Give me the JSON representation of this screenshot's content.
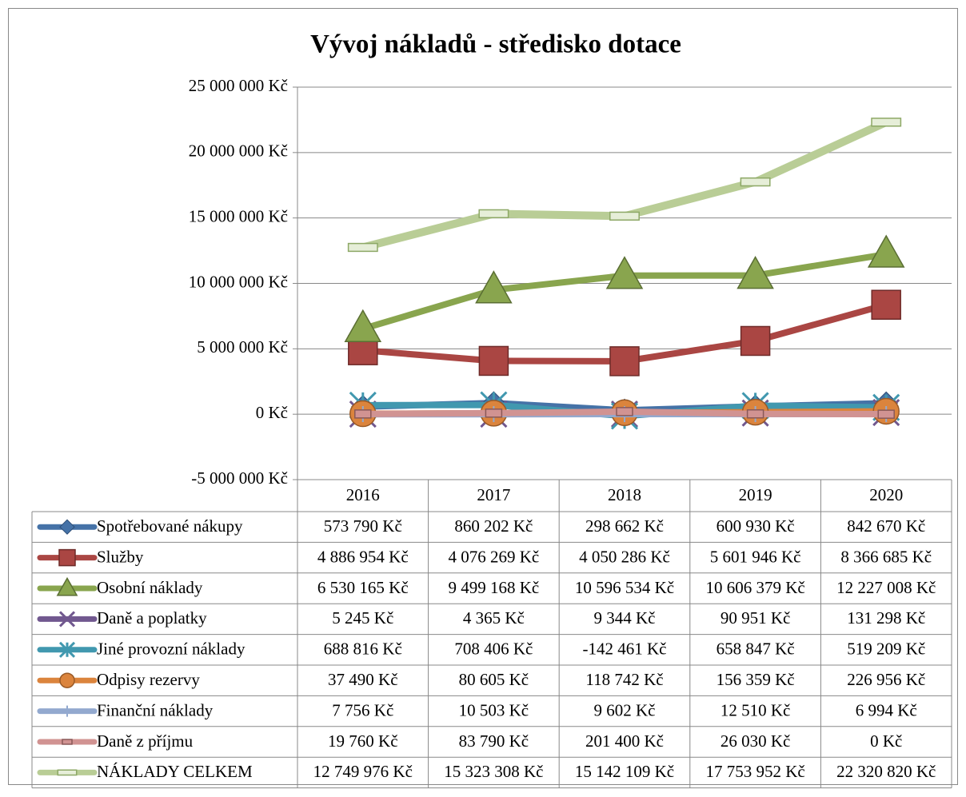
{
  "chart_data": {
    "type": "line",
    "title": "Vývoj nákladů - středisko dotace",
    "categories": [
      "2016",
      "2017",
      "2018",
      "2019",
      "2020"
    ],
    "ylim": [
      -5000000,
      25000000
    ],
    "yticks": [
      {
        "value": -5000000,
        "label": "-5 000 000 Kč"
      },
      {
        "value": 0,
        "label": "0 Kč"
      },
      {
        "value": 5000000,
        "label": "5 000 000 Kč"
      },
      {
        "value": 10000000,
        "label": "10 000 000 Kč"
      },
      {
        "value": 15000000,
        "label": "15 000 000 Kč"
      },
      {
        "value": 20000000,
        "label": "20 000 000 Kč"
      },
      {
        "value": 25000000,
        "label": "25 000 000 Kč"
      }
    ],
    "grid": true,
    "series": [
      {
        "name": "Spotřebované nákupy",
        "color": "#4572a7",
        "marker": "diamond",
        "values": [
          573790,
          860202,
          298662,
          600930,
          842670
        ],
        "value_labels": [
          "573 790 Kč",
          "860 202 Kč",
          "298 662 Kč",
          "600 930 Kč",
          "842 670 Kč"
        ]
      },
      {
        "name": "Služby",
        "color": "#aa4643",
        "marker": "square",
        "values": [
          4886954,
          4076269,
          4050286,
          5601946,
          8366685
        ],
        "value_labels": [
          "4 886 954 Kč",
          "4 076 269 Kč",
          "4 050 286 Kč",
          "5 601 946 Kč",
          "8 366 685 Kč"
        ]
      },
      {
        "name": "Osobní náklady",
        "color": "#89a54e",
        "marker": "triangle",
        "values": [
          6530165,
          9499168,
          10596534,
          10606379,
          12227008
        ],
        "value_labels": [
          "6 530 165 Kč",
          "9 499 168 Kč",
          "10 596 534 Kč",
          "10 606 379 Kč",
          "12 227 008 Kč"
        ]
      },
      {
        "name": "Daně a poplatky",
        "color": "#71588f",
        "marker": "x",
        "values": [
          5245,
          4365,
          9344,
          90951,
          131298
        ],
        "value_labels": [
          "5 245 Kč",
          "4 365 Kč",
          "9 344 Kč",
          "90 951 Kč",
          "131 298 Kč"
        ]
      },
      {
        "name": "Jiné provozní náklady",
        "color": "#4198af",
        "marker": "star",
        "values": [
          688816,
          708406,
          -142461,
          658847,
          519209
        ],
        "value_labels": [
          "688 816 Kč",
          "708 406 Kč",
          "-142 461 Kč",
          "658 847 Kč",
          "519 209 Kč"
        ]
      },
      {
        "name": "Odpisy rezervy",
        "color": "#db843d",
        "marker": "circle",
        "values": [
          37490,
          80605,
          118742,
          156359,
          226956
        ],
        "value_labels": [
          "37 490 Kč",
          "80 605 Kč",
          "118 742 Kč",
          "156 359 Kč",
          "226 956 Kč"
        ]
      },
      {
        "name": "Finanční náklady",
        "color": "#93a9cf",
        "marker": "plus",
        "values": [
          7756,
          10503,
          9602,
          12510,
          6994
        ],
        "value_labels": [
          "7 756 Kč",
          "10 503 Kč",
          "9 602 Kč",
          "12 510 Kč",
          "6 994 Kč"
        ]
      },
      {
        "name": "Daně z příjmu",
        "color": "#d19392",
        "marker": "smallrect",
        "values": [
          19760,
          83790,
          201400,
          26030,
          0
        ],
        "value_labels": [
          "19 760 Kč",
          "83 790 Kč",
          "201 400 Kč",
          "26 030 Kč",
          "0 Kč"
        ]
      },
      {
        "name": "NÁKLADY CELKEM",
        "color": "#b9cd96",
        "marker": "dash",
        "values": [
          12749976,
          15323308,
          15142109,
          17753952,
          22320820
        ],
        "value_labels": [
          "12 749 976 Kč",
          "15 323 308 Kč",
          "15 142 109 Kč",
          "17 753 952 Kč",
          "22 320 820 Kč"
        ]
      }
    ]
  }
}
